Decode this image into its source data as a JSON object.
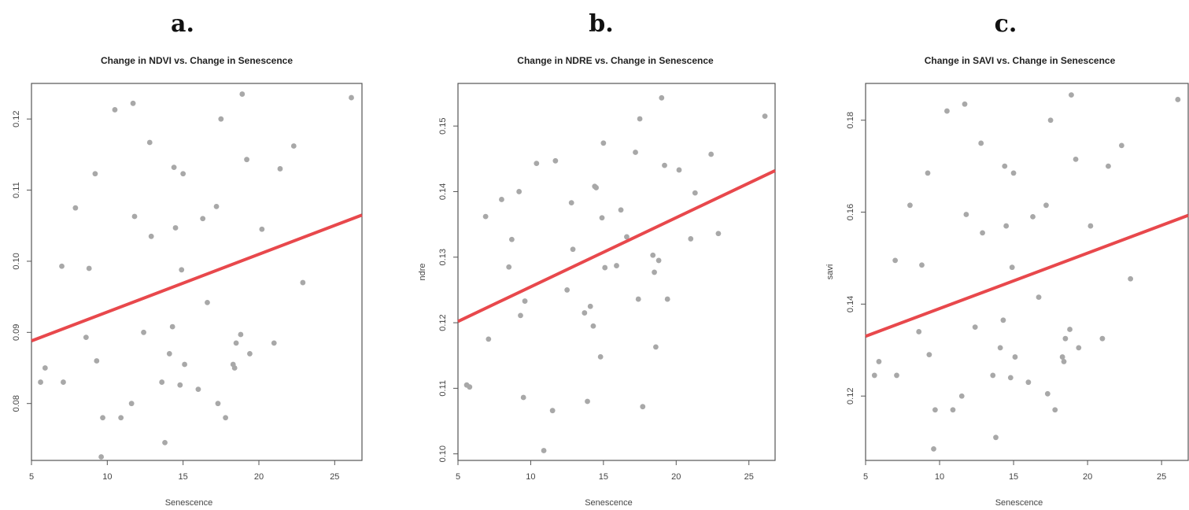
{
  "colors": {
    "points": "#a8a8a8",
    "fit_line": "#e8484c",
    "frame": "#555555"
  },
  "chart_data": [
    {
      "panel_label": "a.",
      "type": "scatter",
      "title": "Change in NDVI vs. Change in Senescence",
      "xlabel": "Senescence",
      "ylabel": "",
      "xlim": [
        5,
        26.8
      ],
      "ylim": [
        0.072,
        0.125
      ],
      "x_ticks": [
        5,
        10,
        15,
        20,
        25
      ],
      "y_ticks": [
        0.08,
        0.09,
        0.1,
        0.11,
        0.12
      ],
      "x_tick_labels": [
        "5",
        "10",
        "15",
        "20",
        "25"
      ],
      "y_tick_labels": [
        "0.08",
        "0.09",
        "0.10",
        "0.11",
        "0.12"
      ],
      "fit_line": {
        "x": [
          5,
          26.8
        ],
        "y": [
          0.0888,
          0.1065
        ]
      },
      "points": [
        [
          5.6,
          0.083
        ],
        [
          5.9,
          0.085
        ],
        [
          7.0,
          0.0993
        ],
        [
          7.1,
          0.083
        ],
        [
          7.9,
          0.1075
        ],
        [
          8.6,
          0.0893
        ],
        [
          8.8,
          0.099
        ],
        [
          9.2,
          0.1123
        ],
        [
          9.3,
          0.086
        ],
        [
          9.6,
          0.0725
        ],
        [
          9.7,
          0.078
        ],
        [
          10.5,
          0.1213
        ],
        [
          10.9,
          0.078
        ],
        [
          11.6,
          0.08
        ],
        [
          11.7,
          0.1222
        ],
        [
          11.8,
          0.1063
        ],
        [
          12.4,
          0.09
        ],
        [
          12.8,
          0.1167
        ],
        [
          12.9,
          0.1035
        ],
        [
          13.6,
          0.083
        ],
        [
          13.8,
          0.0745
        ],
        [
          14.1,
          0.087
        ],
        [
          14.3,
          0.0908
        ],
        [
          14.4,
          0.1132
        ],
        [
          14.5,
          0.1047
        ],
        [
          14.8,
          0.0826
        ],
        [
          14.9,
          0.0988
        ],
        [
          15.0,
          0.1123
        ],
        [
          15.1,
          0.0855
        ],
        [
          16.0,
          0.082
        ],
        [
          16.3,
          0.106
        ],
        [
          16.6,
          0.0942
        ],
        [
          17.2,
          0.1077
        ],
        [
          17.3,
          0.08
        ],
        [
          17.5,
          0.12
        ],
        [
          17.8,
          0.078
        ],
        [
          18.3,
          0.0855
        ],
        [
          18.4,
          0.085
        ],
        [
          18.5,
          0.0885
        ],
        [
          18.8,
          0.0897
        ],
        [
          18.9,
          0.1235
        ],
        [
          19.2,
          0.1143
        ],
        [
          19.4,
          0.087
        ],
        [
          20.2,
          0.1045
        ],
        [
          21.0,
          0.0885
        ],
        [
          21.4,
          0.113
        ],
        [
          22.3,
          0.1162
        ],
        [
          22.9,
          0.097
        ],
        [
          26.1,
          0.123
        ]
      ]
    },
    {
      "panel_label": "b.",
      "type": "scatter",
      "title": "Change in NDRE vs. Change in Senescence",
      "xlabel": "Senescence",
      "ylabel": "ndre",
      "xlim": [
        5,
        26.8
      ],
      "ylim": [
        0.099,
        0.1565
      ],
      "x_ticks": [
        5,
        10,
        15,
        20,
        25
      ],
      "y_ticks": [
        0.1,
        0.11,
        0.12,
        0.13,
        0.14,
        0.15
      ],
      "x_tick_labels": [
        "5",
        "10",
        "15",
        "20",
        "25"
      ],
      "y_tick_labels": [
        "0.10",
        "0.11",
        "0.12",
        "0.13",
        "0.14",
        "0.15"
      ],
      "fit_line": {
        "x": [
          5,
          26.8
        ],
        "y": [
          0.1202,
          0.1432
        ]
      },
      "points": [
        [
          5.6,
          0.1105
        ],
        [
          5.8,
          0.1102
        ],
        [
          6.9,
          0.1362
        ],
        [
          7.1,
          0.1175
        ],
        [
          8.0,
          0.1388
        ],
        [
          8.5,
          0.1285
        ],
        [
          8.7,
          0.1327
        ],
        [
          9.2,
          0.14
        ],
        [
          9.3,
          0.1211
        ],
        [
          9.5,
          0.1086
        ],
        [
          9.6,
          0.1233
        ],
        [
          10.4,
          0.1443
        ],
        [
          10.9,
          0.1005
        ],
        [
          11.5,
          0.1066
        ],
        [
          11.7,
          0.1447
        ],
        [
          12.5,
          0.125
        ],
        [
          12.8,
          0.1383
        ],
        [
          12.9,
          0.1312
        ],
        [
          13.7,
          0.1215
        ],
        [
          13.9,
          0.108
        ],
        [
          14.1,
          0.1225
        ],
        [
          14.3,
          0.1195
        ],
        [
          14.4,
          0.1408
        ],
        [
          14.5,
          0.1406
        ],
        [
          14.8,
          0.1148
        ],
        [
          14.9,
          0.136
        ],
        [
          15.0,
          0.1474
        ],
        [
          15.1,
          0.1284
        ],
        [
          15.9,
          0.1287
        ],
        [
          16.2,
          0.1372
        ],
        [
          16.6,
          0.1331
        ],
        [
          17.2,
          0.146
        ],
        [
          17.4,
          0.1236
        ],
        [
          17.5,
          0.1511
        ],
        [
          17.7,
          0.1072
        ],
        [
          18.4,
          0.1303
        ],
        [
          18.5,
          0.1277
        ],
        [
          18.6,
          0.1163
        ],
        [
          18.8,
          0.1295
        ],
        [
          19.0,
          0.1543
        ],
        [
          19.2,
          0.144
        ],
        [
          19.4,
          0.1236
        ],
        [
          20.2,
          0.1433
        ],
        [
          21.0,
          0.1328
        ],
        [
          21.3,
          0.1398
        ],
        [
          22.4,
          0.1457
        ],
        [
          22.9,
          0.1336
        ],
        [
          26.1,
          0.1515
        ]
      ]
    },
    {
      "panel_label": "c.",
      "type": "scatter",
      "title": "Change in SAVI vs. Change in Senescence",
      "xlabel": "Senescence",
      "ylabel": "savi",
      "xlim": [
        5,
        26.8
      ],
      "ylim": [
        0.106,
        0.188
      ],
      "x_ticks": [
        5,
        10,
        15,
        20,
        25
      ],
      "y_ticks": [
        0.12,
        0.14,
        0.16,
        0.18
      ],
      "x_tick_labels": [
        "5",
        "10",
        "15",
        "20",
        "25"
      ],
      "y_tick_labels": [
        "0.12",
        "0.14",
        "0.16",
        "0.18"
      ],
      "fit_line": {
        "x": [
          5,
          26.8
        ],
        "y": [
          0.133,
          0.1593
        ]
      },
      "points": [
        [
          5.6,
          0.1245
        ],
        [
          5.9,
          0.1275
        ],
        [
          7.0,
          0.1495
        ],
        [
          7.1,
          0.1245
        ],
        [
          8.0,
          0.1615
        ],
        [
          8.6,
          0.134
        ],
        [
          8.8,
          0.1485
        ],
        [
          9.2,
          0.1685
        ],
        [
          9.3,
          0.129
        ],
        [
          9.6,
          0.1085
        ],
        [
          9.7,
          0.117
        ],
        [
          10.5,
          0.182
        ],
        [
          10.9,
          0.117
        ],
        [
          11.5,
          0.12
        ],
        [
          11.7,
          0.1835
        ],
        [
          11.8,
          0.1595
        ],
        [
          12.4,
          0.135
        ],
        [
          12.8,
          0.175
        ],
        [
          12.9,
          0.1555
        ],
        [
          13.6,
          0.1245
        ],
        [
          13.8,
          0.111
        ],
        [
          14.1,
          0.1305
        ],
        [
          14.3,
          0.1365
        ],
        [
          14.4,
          0.17
        ],
        [
          14.5,
          0.157
        ],
        [
          14.8,
          0.124
        ],
        [
          14.9,
          0.148
        ],
        [
          15.0,
          0.1685
        ],
        [
          15.1,
          0.1285
        ],
        [
          16.0,
          0.123
        ],
        [
          16.3,
          0.159
        ],
        [
          16.7,
          0.1415
        ],
        [
          17.2,
          0.1615
        ],
        [
          17.3,
          0.1205
        ],
        [
          17.5,
          0.18
        ],
        [
          17.8,
          0.117
        ],
        [
          18.3,
          0.1285
        ],
        [
          18.4,
          0.1275
        ],
        [
          18.5,
          0.1325
        ],
        [
          18.8,
          0.1345
        ],
        [
          18.9,
          0.1855
        ],
        [
          19.2,
          0.1715
        ],
        [
          19.4,
          0.1305
        ],
        [
          20.2,
          0.157
        ],
        [
          21.0,
          0.1325
        ],
        [
          21.4,
          0.17
        ],
        [
          22.3,
          0.1745
        ],
        [
          22.9,
          0.1455
        ],
        [
          26.1,
          0.1845
        ]
      ]
    }
  ]
}
